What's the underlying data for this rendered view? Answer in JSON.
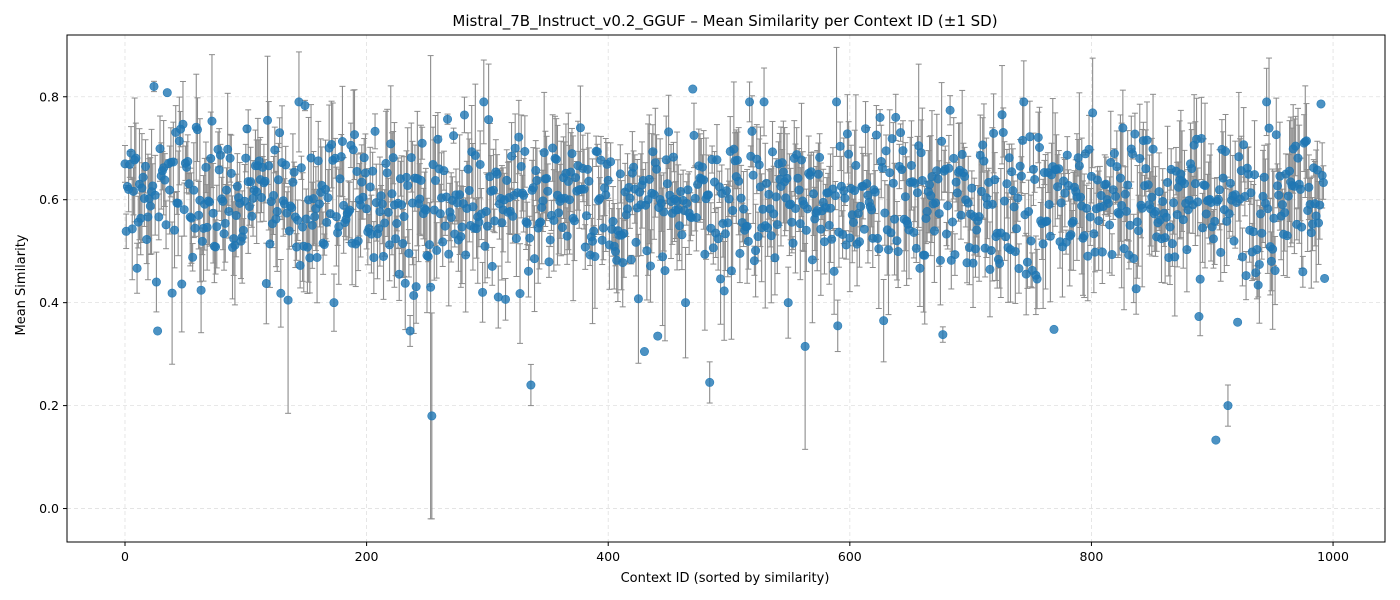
{
  "chart_data": {
    "type": "scatter",
    "title": "Mistral_7B_Instruct_v0.2_GGUF – Mean Similarity per Context ID (±1 SD)",
    "xlabel": "Context ID (sorted by similarity)",
    "ylabel": "Mean Similarity",
    "xlim": [
      -48,
      1043
    ],
    "ylim": [
      -0.065,
      0.92
    ],
    "xticks": [
      0,
      200,
      400,
      600,
      800,
      1000
    ],
    "yticks": [
      0.0,
      0.2,
      0.4,
      0.6,
      0.8
    ],
    "ytick_labels": [
      "0.0",
      "0.2",
      "0.4",
      "0.6",
      "0.8"
    ],
    "grid": true,
    "grid_style": "dashed",
    "colors": {
      "point": "#1f77b4",
      "errorbar": "#8c8c8c",
      "grid": "#e0e0e0"
    },
    "n_points": 994,
    "series_summary": {
      "typical_mean": 0.6,
      "typical_sd": 0.07
    },
    "notable_points": [
      {
        "x": 24,
        "y": 0.82,
        "sd": 0.01
      },
      {
        "x": 27,
        "y": 0.345,
        "sd": 0.0
      },
      {
        "x": 35,
        "y": 0.808,
        "sd": 0.0
      },
      {
        "x": 135,
        "y": 0.405,
        "sd": 0.22
      },
      {
        "x": 149,
        "y": 0.783,
        "sd": 0.01
      },
      {
        "x": 236,
        "y": 0.345,
        "sd": 0.03
      },
      {
        "x": 254,
        "y": 0.18,
        "sd": 0.2
      },
      {
        "x": 253,
        "y": 0.43,
        "sd": 0.45
      },
      {
        "x": 336,
        "y": 0.24,
        "sd": 0.04
      },
      {
        "x": 430,
        "y": 0.305,
        "sd": 0.0
      },
      {
        "x": 441,
        "y": 0.335,
        "sd": 0.0
      },
      {
        "x": 470,
        "y": 0.815,
        "sd": 0.0
      },
      {
        "x": 484,
        "y": 0.245,
        "sd": 0.04
      },
      {
        "x": 563,
        "y": 0.315,
        "sd": 0.2
      },
      {
        "x": 590,
        "y": 0.355,
        "sd": 0.05
      },
      {
        "x": 628,
        "y": 0.365,
        "sd": 0.08
      },
      {
        "x": 677,
        "y": 0.338,
        "sd": 0.015
      },
      {
        "x": 769,
        "y": 0.348,
        "sd": 0.0
      },
      {
        "x": 889,
        "y": 0.373,
        "sd": 0.0
      },
      {
        "x": 903,
        "y": 0.133,
        "sd": 0.0
      },
      {
        "x": 913,
        "y": 0.2,
        "sd": 0.04
      },
      {
        "x": 921,
        "y": 0.362,
        "sd": 0.0
      },
      {
        "x": 990,
        "y": 0.786,
        "sd": 0.0
      },
      {
        "x": 993,
        "y": 0.447,
        "sd": 0.0
      }
    ]
  }
}
